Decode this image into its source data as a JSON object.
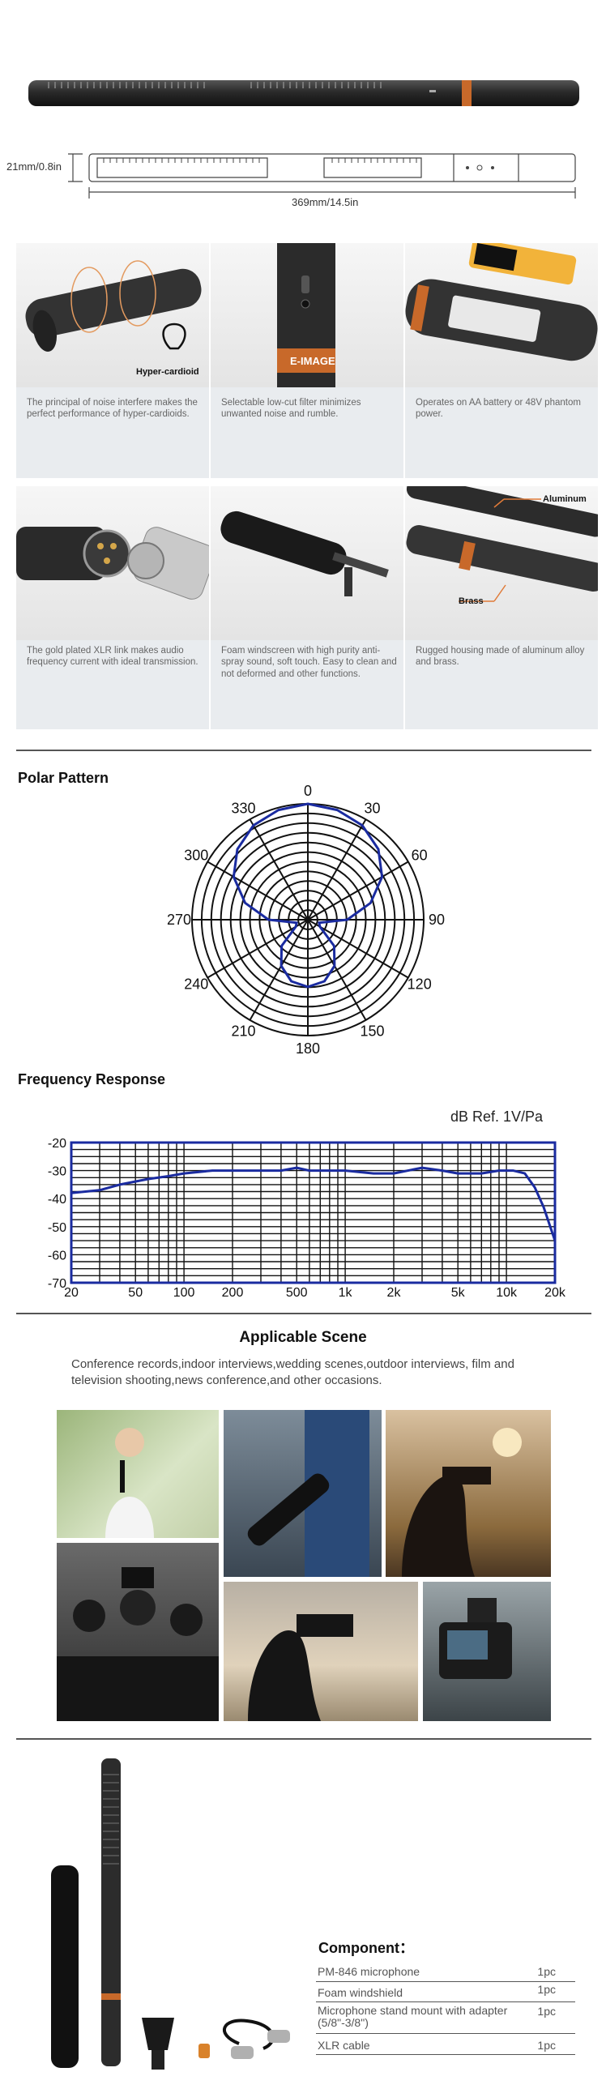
{
  "dimensions": {
    "height_label": "21mm/0.8in",
    "length_label": "369mm/14.5in"
  },
  "features": [
    {
      "caption": "The principal of noise interfere makes the perfect performance of hyper-cardioids.",
      "label": "Hyper-cardioid"
    },
    {
      "caption": "Selectable low-cut filter minimizes unwanted noise and rumble.",
      "label": "E-IMAGE"
    },
    {
      "caption": "Operates on AA battery or 48V phantom power.",
      "label": ""
    },
    {
      "caption": "The gold plated XLR link makes audio frequency current with ideal transmission.",
      "label": ""
    },
    {
      "caption": "Foam windscreen with high purity anti-spray sound, soft touch. Easy to clean and not deformed and other functions.",
      "label": ""
    },
    {
      "caption": "Rugged housing made of aluminum alloy and brass.",
      "label": "",
      "material_top": "Aluminum",
      "material_bottom": "Brass"
    }
  ],
  "polar": {
    "title": "Polar Pattern",
    "angle_labels": [
      "0",
      "30",
      "60",
      "90",
      "120",
      "150",
      "180",
      "210",
      "240",
      "270",
      "300",
      "330"
    ]
  },
  "frequency": {
    "title": "Frequency Response",
    "ref_label": "dB Ref.  1V/Pa",
    "y_ticks": [
      "-20",
      "-30",
      "-40",
      "-50",
      "-60",
      "-70"
    ],
    "x_ticks": [
      "20",
      "50",
      "100",
      "200",
      "500",
      "1k",
      "2k",
      "5k",
      "10k",
      "20k"
    ]
  },
  "chart_data": [
    {
      "type": "line",
      "title": "Polar Pattern",
      "polar": true,
      "angles_deg": [
        0,
        15,
        30,
        45,
        60,
        75,
        90,
        105,
        120,
        135,
        150,
        165,
        180,
        195,
        210,
        225,
        240,
        255,
        270,
        285,
        300,
        315,
        330,
        345
      ],
      "response_normalized": [
        1.0,
        0.98,
        0.94,
        0.86,
        0.74,
        0.56,
        0.34,
        0.1,
        0.12,
        0.32,
        0.46,
        0.55,
        0.58,
        0.55,
        0.46,
        0.32,
        0.12,
        0.1,
        0.34,
        0.56,
        0.74,
        0.86,
        0.94,
        0.98
      ],
      "rlim": [
        0,
        1
      ]
    },
    {
      "type": "line",
      "title": "Frequency Response",
      "xlabel": "",
      "ylabel": "dB Ref.  1V/Pa",
      "x_scale": "log",
      "xlim": [
        20,
        20000
      ],
      "ylim": [
        -70,
        -20
      ],
      "grid": true,
      "x": [
        20,
        30,
        40,
        60,
        80,
        100,
        150,
        200,
        300,
        400,
        500,
        600,
        800,
        1000,
        1500,
        2000,
        3000,
        4000,
        5000,
        7000,
        9000,
        11000,
        13000,
        15000,
        17000,
        20000
      ],
      "y": [
        -38,
        -37,
        -35,
        -33,
        -32,
        -31,
        -30,
        -30,
        -30,
        -30,
        -29,
        -30,
        -30,
        -30,
        -31,
        -31,
        -29,
        -30,
        -31,
        -31,
        -30,
        -30,
        -31,
        -36,
        -43,
        -55
      ]
    }
  ],
  "scene": {
    "title": "Applicable Scene",
    "description": "Conference records,indoor interviews,wedding scenes,outdoor interviews, film and television shooting,news conference,and other occasions."
  },
  "components": {
    "title": "Component：",
    "items": [
      {
        "name": "PM-846 microphone",
        "qty": "1pc"
      },
      {
        "name": "Foam windshield",
        "qty": "1pc"
      },
      {
        "name": "Microphone stand mount with adapter (5/8\"-3/8\")",
        "qty": "1pc"
      },
      {
        "name": "XLR cable",
        "qty": "1pc"
      }
    ]
  },
  "colors": {
    "accent_orange": "#c8692a",
    "chart_blue": "#1a2ba0",
    "body_dark": "#2c2c2c"
  }
}
